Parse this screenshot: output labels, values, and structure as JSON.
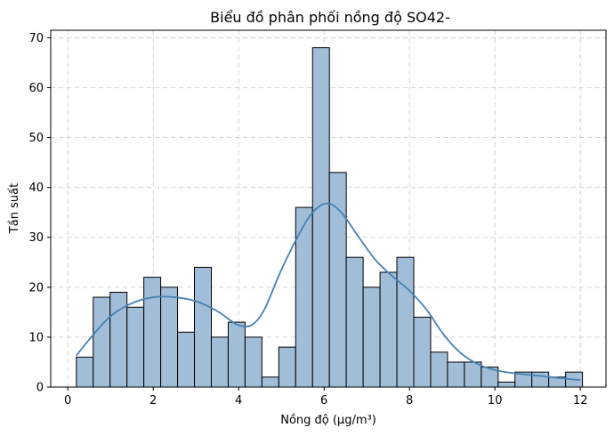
{
  "chart_data": {
    "type": "bar",
    "subtype": "histogram-with-kde",
    "title": "Biểu đồ phân phối nồng độ SO42-",
    "xlabel": "Nồng độ (µg/m³)",
    "ylabel": "Tần suất",
    "xlim": [
      -0.4,
      12.6
    ],
    "ylim": [
      0,
      71.5
    ],
    "xticks": [
      0,
      2,
      4,
      6,
      8,
      10,
      12
    ],
    "yticks": [
      0,
      10,
      20,
      30,
      40,
      50,
      60,
      70
    ],
    "grid": true,
    "bin_start": 0.2,
    "bin_width": 0.395,
    "counts": [
      6,
      18,
      19,
      16,
      22,
      20,
      11,
      24,
      10,
      13,
      10,
      2,
      8,
      36,
      68,
      43,
      26,
      20,
      23,
      26,
      14,
      7,
      5,
      5,
      4,
      1,
      3,
      3,
      2,
      3
    ],
    "kde": {
      "x": [
        0.2,
        0.5,
        1.0,
        1.5,
        2.0,
        2.5,
        3.0,
        3.5,
        3.8,
        4.0,
        4.3,
        4.6,
        5.0,
        5.5,
        5.8,
        6.1,
        6.4,
        6.8,
        7.2,
        7.6,
        8.0,
        8.4,
        8.8,
        9.2,
        9.6,
        10.0,
        10.5,
        11.0,
        11.5,
        12.0
      ],
      "y": [
        6.3,
        9.5,
        14.2,
        16.8,
        18.0,
        18.0,
        17.2,
        15.2,
        13.4,
        12.4,
        12.4,
        15.5,
        23.5,
        32.0,
        35.6,
        36.8,
        35.0,
        30.2,
        25.5,
        22.2,
        19.3,
        15.5,
        10.5,
        6.8,
        4.6,
        3.4,
        2.7,
        2.3,
        1.8,
        1.4
      ]
    },
    "colors": {
      "bar_fill": "#a1bdd8",
      "bar_edge": "#000000",
      "kde_line": "#4682b4",
      "grid": "#cccccc"
    }
  }
}
